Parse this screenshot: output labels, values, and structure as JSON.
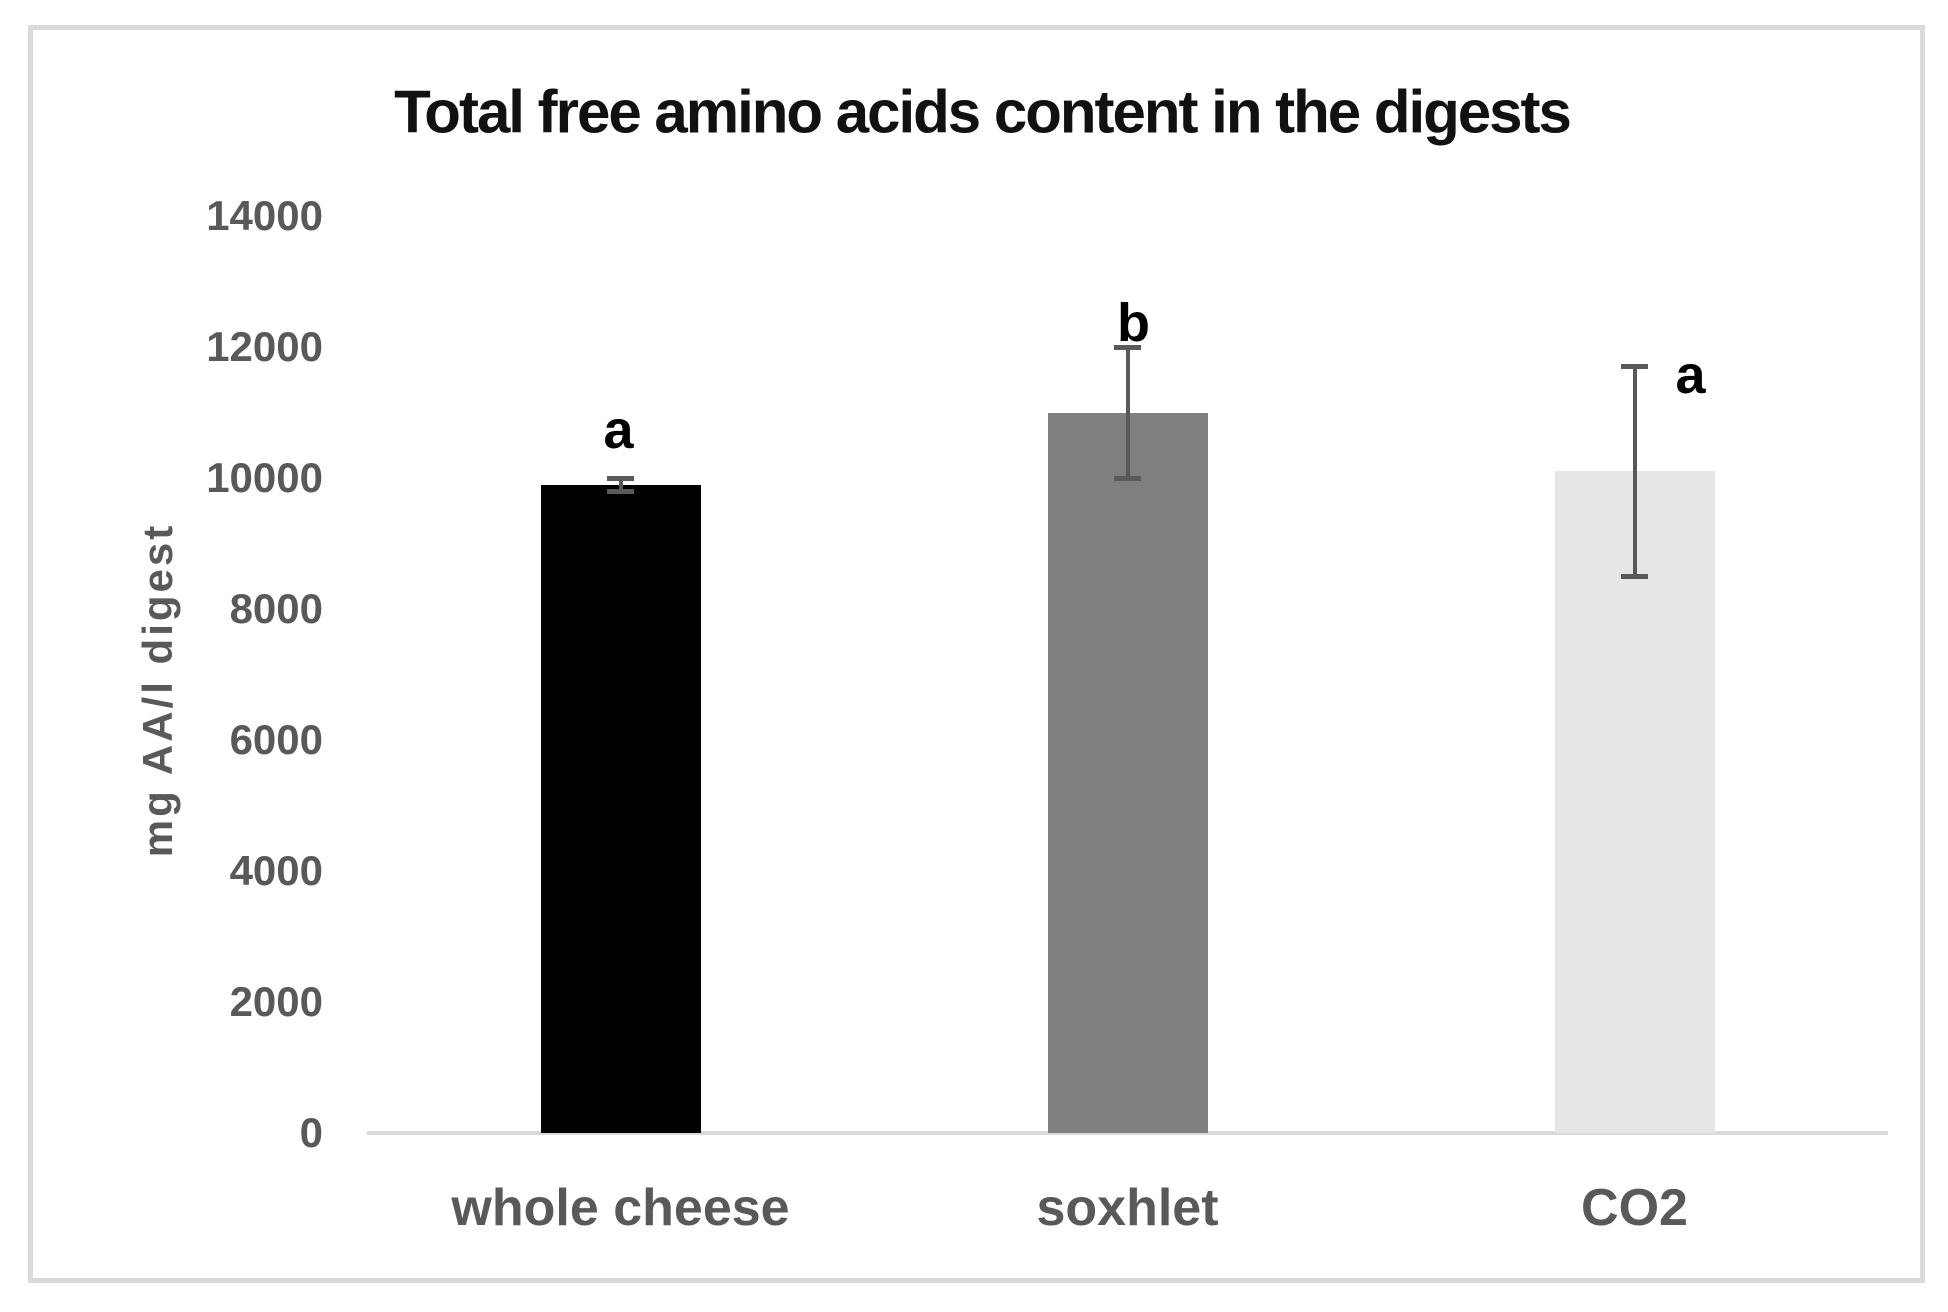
{
  "chart_data": {
    "type": "bar",
    "title": "Total free amino acids content in the digests",
    "ylabel": "mg AA/l digest",
    "xlabel": "",
    "categories": [
      "whole cheese",
      "soxhlet",
      "CO2"
    ],
    "values": [
      9900,
      11000,
      10100
    ],
    "error_bars": [
      {
        "high": 10000,
        "low": 9800
      },
      {
        "high": 12000,
        "low": 10000
      },
      {
        "high": 11700,
        "low": 8500
      }
    ],
    "significance_letters": [
      "a",
      "b",
      "a"
    ],
    "bar_colors": [
      "#000000",
      "#7f7f7f",
      "#e6e6e6"
    ],
    "ylim": [
      0,
      14000
    ],
    "yticks": [
      0,
      2000,
      4000,
      6000,
      8000,
      10000,
      12000,
      14000
    ],
    "grid": "off",
    "legend": "none",
    "text_color": "#595959",
    "title_color": "#111111",
    "axis_line_color": "#d9d9d9",
    "error_bar_color": "#595959"
  }
}
